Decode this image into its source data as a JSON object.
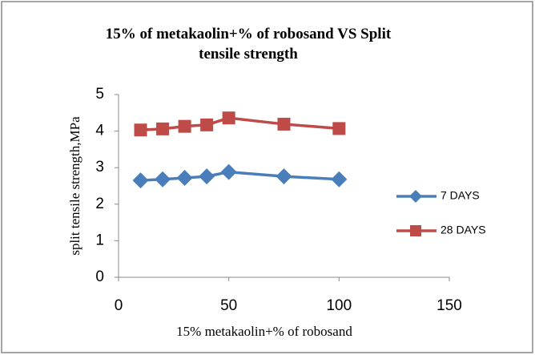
{
  "chart_data": {
    "type": "line",
    "title": "15% of metakaolin+% of robosand VS Split tensile strength",
    "x_label": "15% metakaolin+%  of robosand",
    "y_label": "split tensile strength,MPa",
    "x": [
      10,
      20,
      30,
      40,
      50,
      75,
      100
    ],
    "series": [
      {
        "name": "7 DAYS",
        "color": "#4a7ebb",
        "marker": "diamond",
        "values": [
          2.65,
          2.68,
          2.72,
          2.76,
          2.88,
          2.76,
          2.68
        ]
      },
      {
        "name": "28 DAYS",
        "color": "#be4b48",
        "marker": "square",
        "values": [
          4.03,
          4.06,
          4.13,
          4.17,
          4.36,
          4.19,
          4.07
        ]
      }
    ],
    "xlim": [
      0,
      150
    ],
    "xticks": [
      0,
      50,
      100,
      150
    ],
    "ylim": [
      0,
      5
    ],
    "yticks": [
      0,
      1,
      2,
      3,
      4,
      5
    ],
    "grid": false,
    "legend": "right"
  }
}
